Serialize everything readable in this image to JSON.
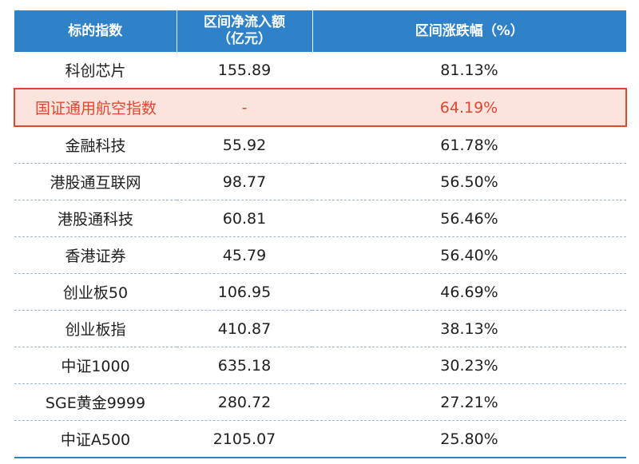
{
  "table": {
    "headers": [
      "标的指数",
      "区间净流入额\n（亿元）",
      "区间涨跌幅（%）"
    ],
    "header_line1": "区间净流入额",
    "header_line2": "（亿元）",
    "highlight_color": "#e0472f",
    "header_color": "#2f82c8",
    "rows": [
      {
        "name": "科创芯片",
        "inflow": "155.89",
        "change": "81.13%"
      },
      {
        "name": "国证通用航空指数",
        "inflow": "-",
        "change": "64.19%",
        "highlight": true
      },
      {
        "name": "金融科技",
        "inflow": "55.92",
        "change": "61.78%"
      },
      {
        "name": "港股通互联网",
        "inflow": "98.77",
        "change": "56.50%"
      },
      {
        "name": "港股通科技",
        "inflow": "60.81",
        "change": "56.46%"
      },
      {
        "name": "香港证券",
        "inflow": "45.79",
        "change": "56.40%"
      },
      {
        "name": "创业板50",
        "inflow": "106.95",
        "change": "46.69%"
      },
      {
        "name": "创业板指",
        "inflow": "410.87",
        "change": "38.13%"
      },
      {
        "name": "中证1000",
        "inflow": "635.18",
        "change": "30.23%"
      },
      {
        "name": "SGE黄金9999",
        "inflow": "280.72",
        "change": "27.21%"
      },
      {
        "name": "中证A500",
        "inflow": "2105.07",
        "change": "25.80%"
      }
    ]
  }
}
